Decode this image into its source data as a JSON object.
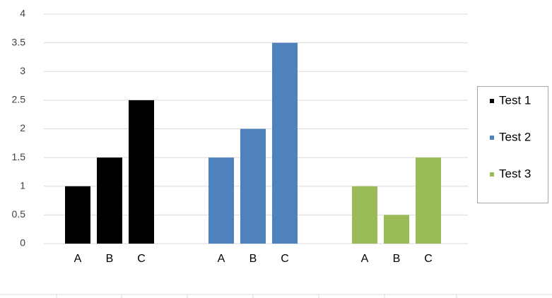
{
  "chart_data": {
    "type": "bar",
    "layout": "grouped-by-series",
    "categories": [
      "A",
      "B",
      "C"
    ],
    "series": [
      {
        "name": "Test 1",
        "color": "#000000",
        "values": [
          1,
          1.5,
          2.5
        ]
      },
      {
        "name": "Test 2",
        "color": "#4f81bd",
        "values": [
          1.5,
          2,
          3.5
        ]
      },
      {
        "name": "Test 3",
        "color": "#9bbb59",
        "values": [
          1,
          0.5,
          1.5
        ]
      }
    ],
    "ylim": [
      0,
      4
    ],
    "yticks": [
      0,
      0.5,
      1,
      1.5,
      2,
      2.5,
      3,
      3.5,
      4
    ],
    "grid": true,
    "legend": "right"
  }
}
